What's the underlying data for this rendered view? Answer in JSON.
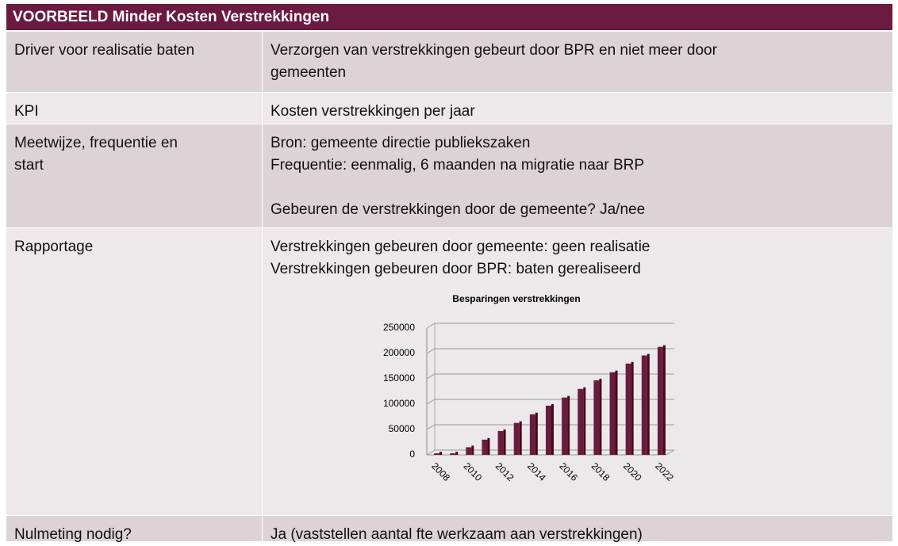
{
  "header": {
    "title": "VOORBEELD Minder Kosten Verstrekkingen"
  },
  "table": {
    "rows": [
      {
        "label": [
          "Driver voor realisatie baten"
        ],
        "value": [
          "Verzorgen van verstrekkingen gebeurt door BPR en niet meer door",
          "gemeenten"
        ]
      },
      {
        "label": [
          "KPI"
        ],
        "value": [
          "Kosten verstrekkingen per jaar"
        ]
      },
      {
        "label": [
          "Meetwijze, frequentie en",
          "start"
        ],
        "value": [
          "Bron: gemeente directie publiekszaken",
          "Frequentie: eenmalig, 6 maanden na migratie naar BRP",
          "Gebeuren de verstrekkingen door de gemeente? Ja/nee"
        ]
      },
      {
        "label": [
          "Rapportage"
        ],
        "value": [
          "Verstrekkingen gebeuren door gemeente: geen realisatie",
          "Verstrekkingen gebeuren door BPR: baten gerealiseerd"
        ]
      },
      {
        "label": [
          "Nulmeting nodig?"
        ],
        "value": [
          "Ja (vaststellen aantal fte werkzaam aan verstrekkingen)"
        ]
      }
    ]
  },
  "chart_data": {
    "type": "bar",
    "title": "Besparingen verstrekkingen",
    "categories": [
      "2008",
      null,
      "2010",
      null,
      "2012",
      null,
      "2014",
      null,
      "2016",
      null,
      "2018",
      null,
      "2020",
      null,
      "2022"
    ],
    "values": [
      3000,
      3000,
      15000,
      30000,
      47000,
      63000,
      80000,
      97000,
      113000,
      130000,
      147000,
      163000,
      180000,
      196000,
      213000
    ],
    "color": "#6d1a3c",
    "ylim": [
      0,
      250000
    ],
    "yticks": [
      0,
      50000,
      100000,
      150000,
      200000,
      250000
    ],
    "grid": true
  }
}
